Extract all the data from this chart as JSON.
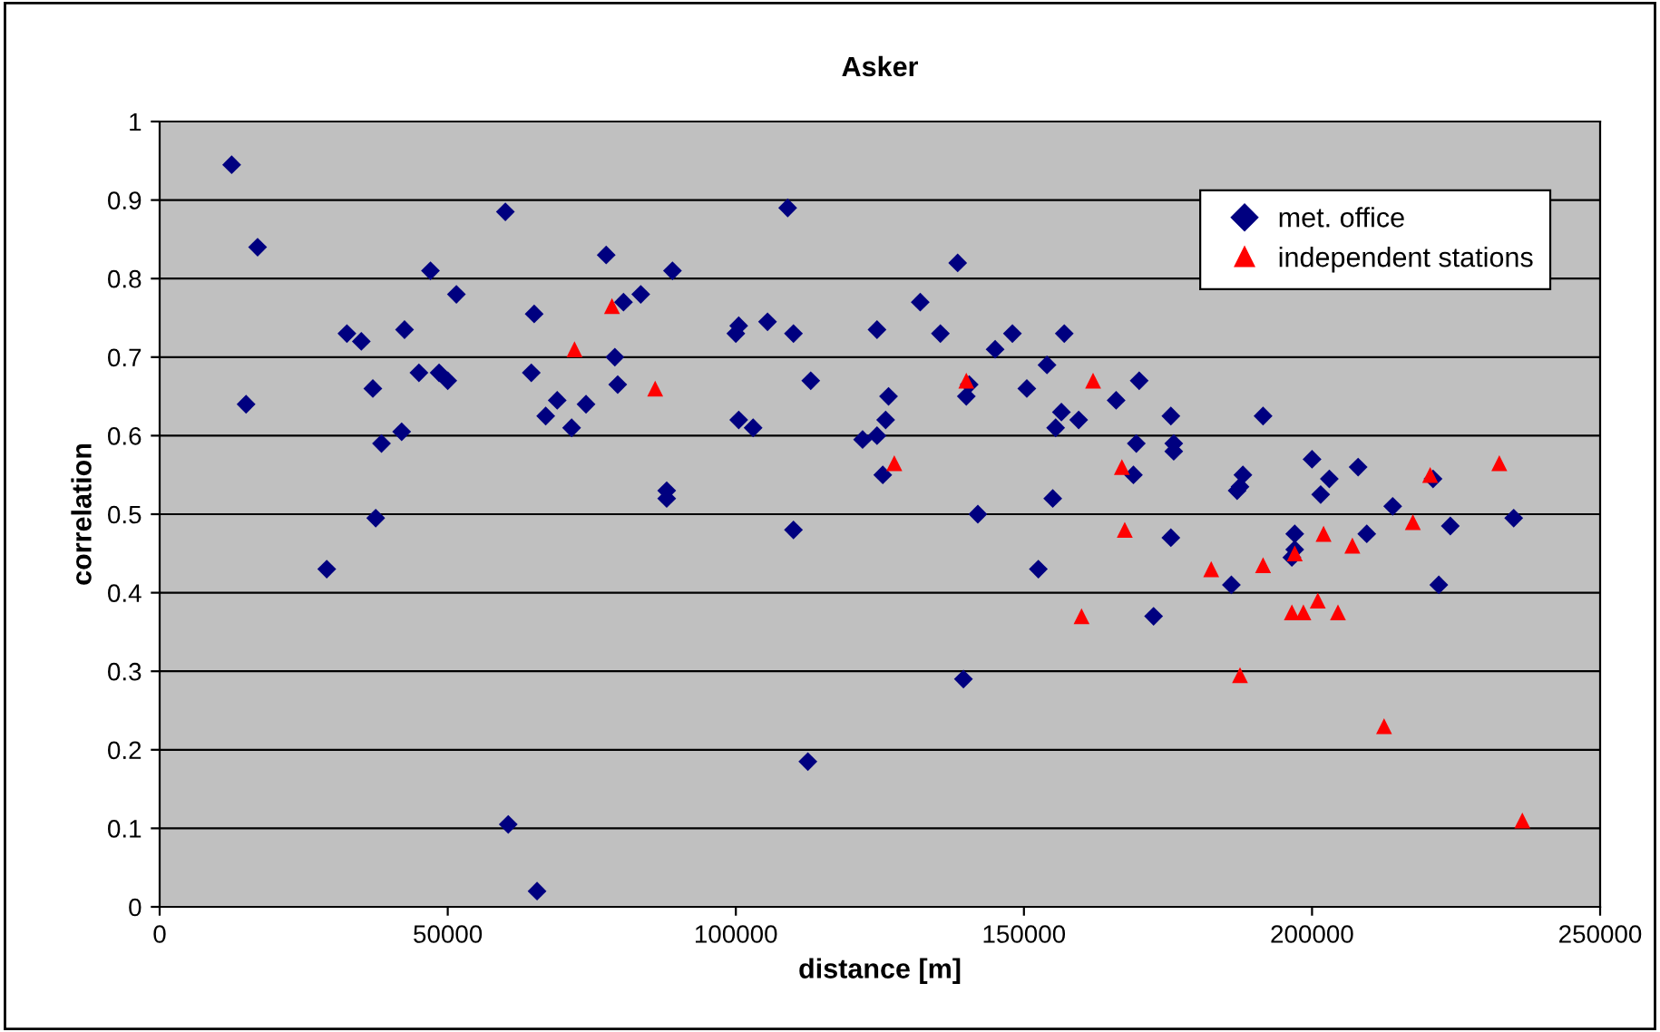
{
  "chart_data": {
    "type": "scatter",
    "title": "Asker",
    "xlabel": "distance [m]",
    "ylabel": "correlation",
    "xlim": [
      0,
      250000
    ],
    "xticks": [
      0,
      50000,
      100000,
      150000,
      200000,
      250000
    ],
    "ylim": [
      0,
      1
    ],
    "yticks": [
      0,
      0.1,
      0.2,
      0.3,
      0.4,
      0.5,
      0.6,
      0.7,
      0.8,
      0.9,
      1
    ],
    "grid": "y",
    "legend": "top right",
    "series": [
      {
        "name": "met. office",
        "color": "#000080",
        "marker": "diamond",
        "x": [
          12500,
          15000,
          17000,
          29000,
          32500,
          35000,
          37000,
          37500,
          38500,
          42000,
          42500,
          45000,
          47000,
          48500,
          50000,
          51500,
          60000,
          60500,
          64500,
          65000,
          65500,
          67000,
          69000,
          71500,
          74000,
          77500,
          79000,
          79500,
          80500,
          83500,
          88000,
          88000,
          89000,
          100000,
          100500,
          100500,
          103000,
          105500,
          109000,
          110000,
          110000,
          112500,
          113000,
          122000,
          124500,
          124500,
          125500,
          126000,
          126500,
          132000,
          135500,
          138500,
          139500,
          140000,
          140500,
          142000,
          145000,
          148000,
          150500,
          152500,
          154000,
          155000,
          155500,
          156500,
          157000,
          159500,
          166000,
          169000,
          170000,
          169500,
          172500,
          175500,
          175500,
          176000,
          176000,
          186000,
          187000,
          187500,
          188000,
          191500,
          197000,
          197000,
          196500,
          200000,
          201500,
          203000,
          208000,
          209500,
          214000,
          221000,
          222000,
          224000,
          235000
        ],
        "values": [
          0.945,
          0.64,
          0.84,
          0.43,
          0.73,
          0.72,
          0.66,
          0.495,
          0.59,
          0.605,
          0.735,
          0.68,
          0.81,
          0.68,
          0.67,
          0.78,
          0.885,
          0.105,
          0.68,
          0.755,
          0.02,
          0.625,
          0.645,
          0.61,
          0.64,
          0.83,
          0.7,
          0.665,
          0.77,
          0.78,
          0.53,
          0.52,
          0.81,
          0.73,
          0.74,
          0.62,
          0.61,
          0.745,
          0.89,
          0.73,
          0.48,
          0.185,
          0.67,
          0.595,
          0.6,
          0.735,
          0.55,
          0.62,
          0.65,
          0.77,
          0.73,
          0.82,
          0.29,
          0.65,
          0.665,
          0.5,
          0.71,
          0.73,
          0.66,
          0.43,
          0.69,
          0.52,
          0.61,
          0.63,
          0.73,
          0.62,
          0.645,
          0.55,
          0.67,
          0.59,
          0.37,
          0.625,
          0.47,
          0.58,
          0.59,
          0.41,
          0.53,
          0.535,
          0.55,
          0.625,
          0.475,
          0.455,
          0.445,
          0.57,
          0.525,
          0.545,
          0.56,
          0.475,
          0.51,
          0.545,
          0.41,
          0.485,
          0.495
        ]
      },
      {
        "name": "independent stations",
        "color": "#ff0000",
        "marker": "triangle",
        "x": [
          72000,
          78500,
          86000,
          127500,
          140000,
          160000,
          162000,
          167000,
          167500,
          182500,
          187500,
          191500,
          196500,
          197000,
          198500,
          201000,
          202000,
          204500,
          207000,
          212500,
          217500,
          220500,
          232500,
          236500
        ],
        "values": [
          0.71,
          0.765,
          0.66,
          0.565,
          0.67,
          0.37,
          0.67,
          0.56,
          0.48,
          0.43,
          0.295,
          0.435,
          0.375,
          0.45,
          0.375,
          0.39,
          0.475,
          0.375,
          0.46,
          0.23,
          0.49,
          0.55,
          0.565,
          0.11
        ]
      }
    ]
  }
}
